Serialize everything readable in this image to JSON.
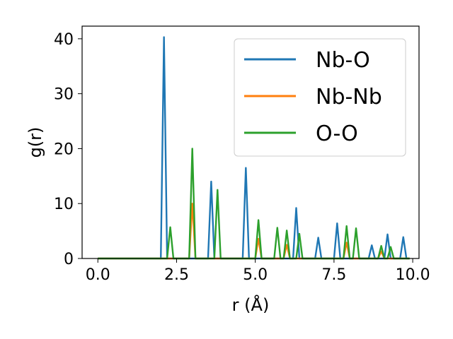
{
  "chart_data": {
    "type": "line",
    "xlabel": "r (Å)",
    "ylabel": "g(r)",
    "xlim": [
      -0.5,
      10.2
    ],
    "ylim": [
      0,
      42.3
    ],
    "xticks": [
      0.0,
      2.5,
      5.0,
      7.5,
      10.0
    ],
    "xtick_labels": [
      "0.0",
      "2.5",
      "5.0",
      "7.5",
      "10.0"
    ],
    "yticks": [
      0,
      10,
      20,
      30,
      40
    ],
    "ytick_labels": [
      "0",
      "10",
      "20",
      "30",
      "40"
    ],
    "grid": false,
    "legend_position": "top-right",
    "series": [
      {
        "name": "Nb-O",
        "color": "#1f77b4",
        "x": [
          0,
          2.0,
          2.1,
          2.2,
          3.5,
          3.6,
          3.7,
          4.6,
          4.7,
          4.8,
          6.2,
          6.3,
          6.4,
          6.9,
          7.0,
          7.1,
          7.5,
          7.6,
          7.7,
          8.6,
          8.7,
          8.8,
          9.1,
          9.2,
          9.3,
          9.6,
          9.7,
          9.8,
          9.9
        ],
        "y": [
          0,
          0,
          40.3,
          0,
          0,
          14.0,
          0,
          0,
          16.5,
          0,
          0,
          9.2,
          0,
          0,
          3.8,
          0,
          0,
          6.4,
          0,
          0,
          2.4,
          0,
          0,
          4.4,
          0,
          0,
          3.9,
          0,
          0
        ]
      },
      {
        "name": "Nb-Nb",
        "color": "#ff7f0e",
        "x": [
          0,
          2.9,
          3.0,
          3.1,
          5.0,
          5.1,
          5.2,
          5.9,
          6.0,
          6.1,
          7.8,
          7.9,
          8.0,
          8.9,
          9.0,
          9.1,
          9.9
        ],
        "y": [
          0,
          0,
          10.0,
          0,
          0,
          3.6,
          0,
          0,
          2.5,
          0,
          0,
          2.9,
          0,
          0,
          1.3,
          0,
          0
        ]
      },
      {
        "name": "O-O",
        "color": "#2ca02c",
        "x": [
          0,
          2.2,
          2.3,
          2.4,
          2.9,
          3.0,
          3.1,
          3.7,
          3.8,
          3.9,
          5.0,
          5.1,
          5.2,
          5.6,
          5.7,
          5.8,
          5.9,
          6.0,
          6.1,
          6.3,
          6.4,
          6.5,
          7.8,
          7.9,
          8.0,
          8.1,
          8.2,
          8.3,
          8.9,
          9.0,
          9.1,
          9.2,
          9.3,
          9.4,
          9.9
        ],
        "y": [
          0,
          0,
          5.7,
          0,
          0,
          20.0,
          0,
          0,
          12.5,
          0,
          0,
          7.0,
          0,
          0,
          5.6,
          0,
          0,
          5.1,
          0,
          0,
          4.5,
          0,
          0,
          5.9,
          0,
          0,
          5.5,
          0,
          0,
          2.3,
          0,
          0,
          2.1,
          0,
          0
        ]
      }
    ]
  }
}
